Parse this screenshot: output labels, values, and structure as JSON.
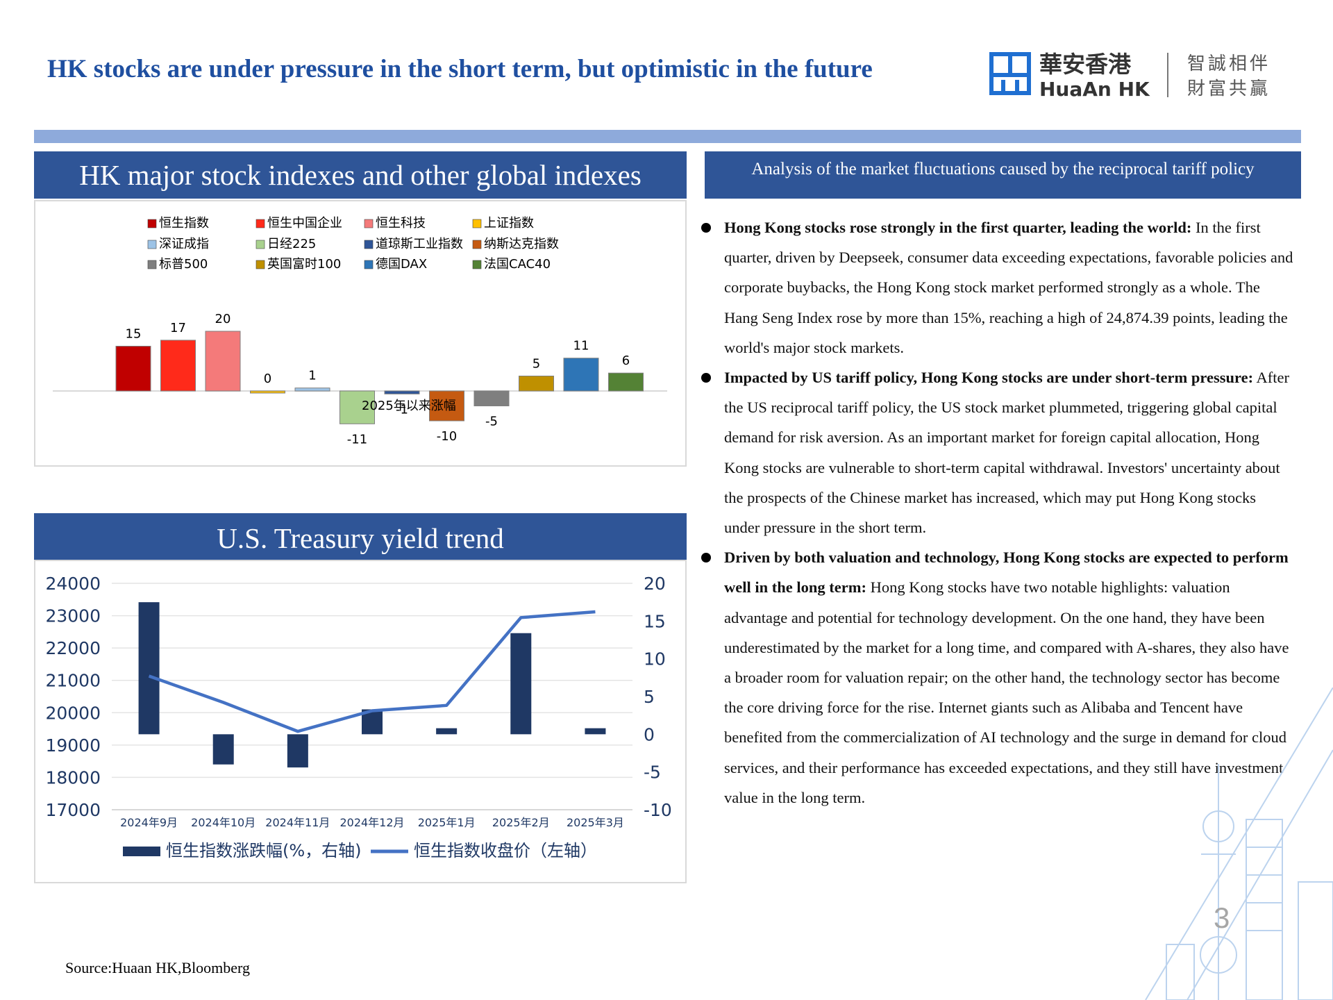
{
  "page": {
    "title": "HK stocks are under pressure in the short term, but optimistic in the future",
    "source": "Source:Huaan HK,Bloomberg",
    "page_number": "3"
  },
  "logo": {
    "name_cn": "華安香港",
    "name_en": "HuaAn HK",
    "slogan_line1": "智誠相伴",
    "slogan_line2": "財富共贏",
    "color": "#1f6fd1"
  },
  "panels": {
    "indexes_header": "HK major stock indexes and other global indexes",
    "analysis_header": "Analysis of the  market fluctuations caused by the reciprocal tariff policy",
    "treasury_header": "U.S. Treasury yield trend"
  },
  "analysis": [
    {
      "bold": "Hong Kong stocks rose strongly in the first quarter, leading the world:",
      "text": " In the first quarter, driven by Deepseek, consumer data exceeding expectations, favorable policies and corporate buybacks, the Hong Kong stock market performed strongly as a whole. The Hang Seng Index rose by more than 15%, reaching a high of 24,874.39 points, leading the world's major stock markets."
    },
    {
      "bold": "Impacted by US tariff policy, Hong Kong stocks are under short-term pressure:",
      "text": " After the US reciprocal tariff policy, the US stock market plummeted, triggering global capital demand for risk aversion. As an important market for foreign capital allocation, Hong Kong stocks are vulnerable to short-term capital withdrawal. Investors' uncertainty about the prospects of the Chinese market has increased, which may put Hong Kong stocks under pressure in the short term."
    },
    {
      "bold": "Driven by both valuation and technology, Hong Kong stocks are expected to perform well in the long term:",
      "text": " Hong Kong stocks have two notable highlights: valuation advantage and potential for technology development. On the one hand, they have been underestimated by the market for a long time, and compared with A-shares, they also have a broader room for valuation repair; on the other hand, the technology sector has become the core driving force for the rise. Internet giants such as Alibaba and Tencent have benefited from the commercialization of AI technology and the surge in demand for cloud services, and their performance has exceeded expectations, and they still have investment value in the long term."
    }
  ],
  "chart_data": [
    {
      "type": "bar",
      "title": "",
      "xlabel": "2025年以来涨幅",
      "ylabel": "",
      "legend_position": "top",
      "grid": false,
      "ylim": [
        -13,
        23
      ],
      "categories": [
        "恒生指数",
        "恒生中国企业",
        "恒生科技",
        "上证指数",
        "深证成指",
        "日经225",
        "道琼斯工业指数",
        "纳斯达克指数",
        "标普500",
        "英国富时100",
        "德国DAX",
        "法国CAC40"
      ],
      "values": [
        15,
        17,
        20,
        0,
        1,
        -11,
        -1,
        -10,
        -5,
        5,
        11,
        6
      ],
      "labels": [
        "15",
        "17",
        "20",
        "0",
        "1",
        "-11",
        "-1",
        "-10",
        "-5",
        "5",
        "11",
        "6"
      ],
      "colors": [
        "#c00000",
        "#ff2a1a",
        "#f47a7a",
        "#ffc000",
        "#9dc3e6",
        "#a9d18e",
        "#2f5597",
        "#c55a11",
        "#7f7f7f",
        "#bf9000",
        "#2e75b6",
        "#548235"
      ]
    },
    {
      "type": "bar+line",
      "title": "",
      "legend_position": "bottom",
      "grid": true,
      "categories": [
        "2024年9月",
        "2024年10月",
        "2024年11月",
        "2024年12月",
        "2025年1月",
        "2025年2月",
        "2025年3月"
      ],
      "left_axis": {
        "ticks": [
          "24000",
          "23000",
          "22000",
          "21000",
          "20000",
          "19000",
          "18000",
          "17000"
        ],
        "ylim": [
          17000,
          24000
        ]
      },
      "right_axis": {
        "ticks": [
          "20",
          "15",
          "10",
          "5",
          "0",
          "-5",
          "-10"
        ],
        "ylim": [
          -10,
          20
        ]
      },
      "series": [
        {
          "name": "恒生指数涨跌幅(%，右轴)",
          "type": "bar",
          "axis": "right",
          "color": "#1f3864",
          "values": [
            17.5,
            -4,
            -4.4,
            3.3,
            0.8,
            13.4,
            0.8
          ]
        },
        {
          "name": "恒生指数收盘价（左轴）",
          "type": "line",
          "axis": "left",
          "color": "#4472c4",
          "values": [
            21133,
            20317,
            19423,
            20060,
            20225,
            22941,
            23119
          ]
        }
      ]
    }
  ]
}
